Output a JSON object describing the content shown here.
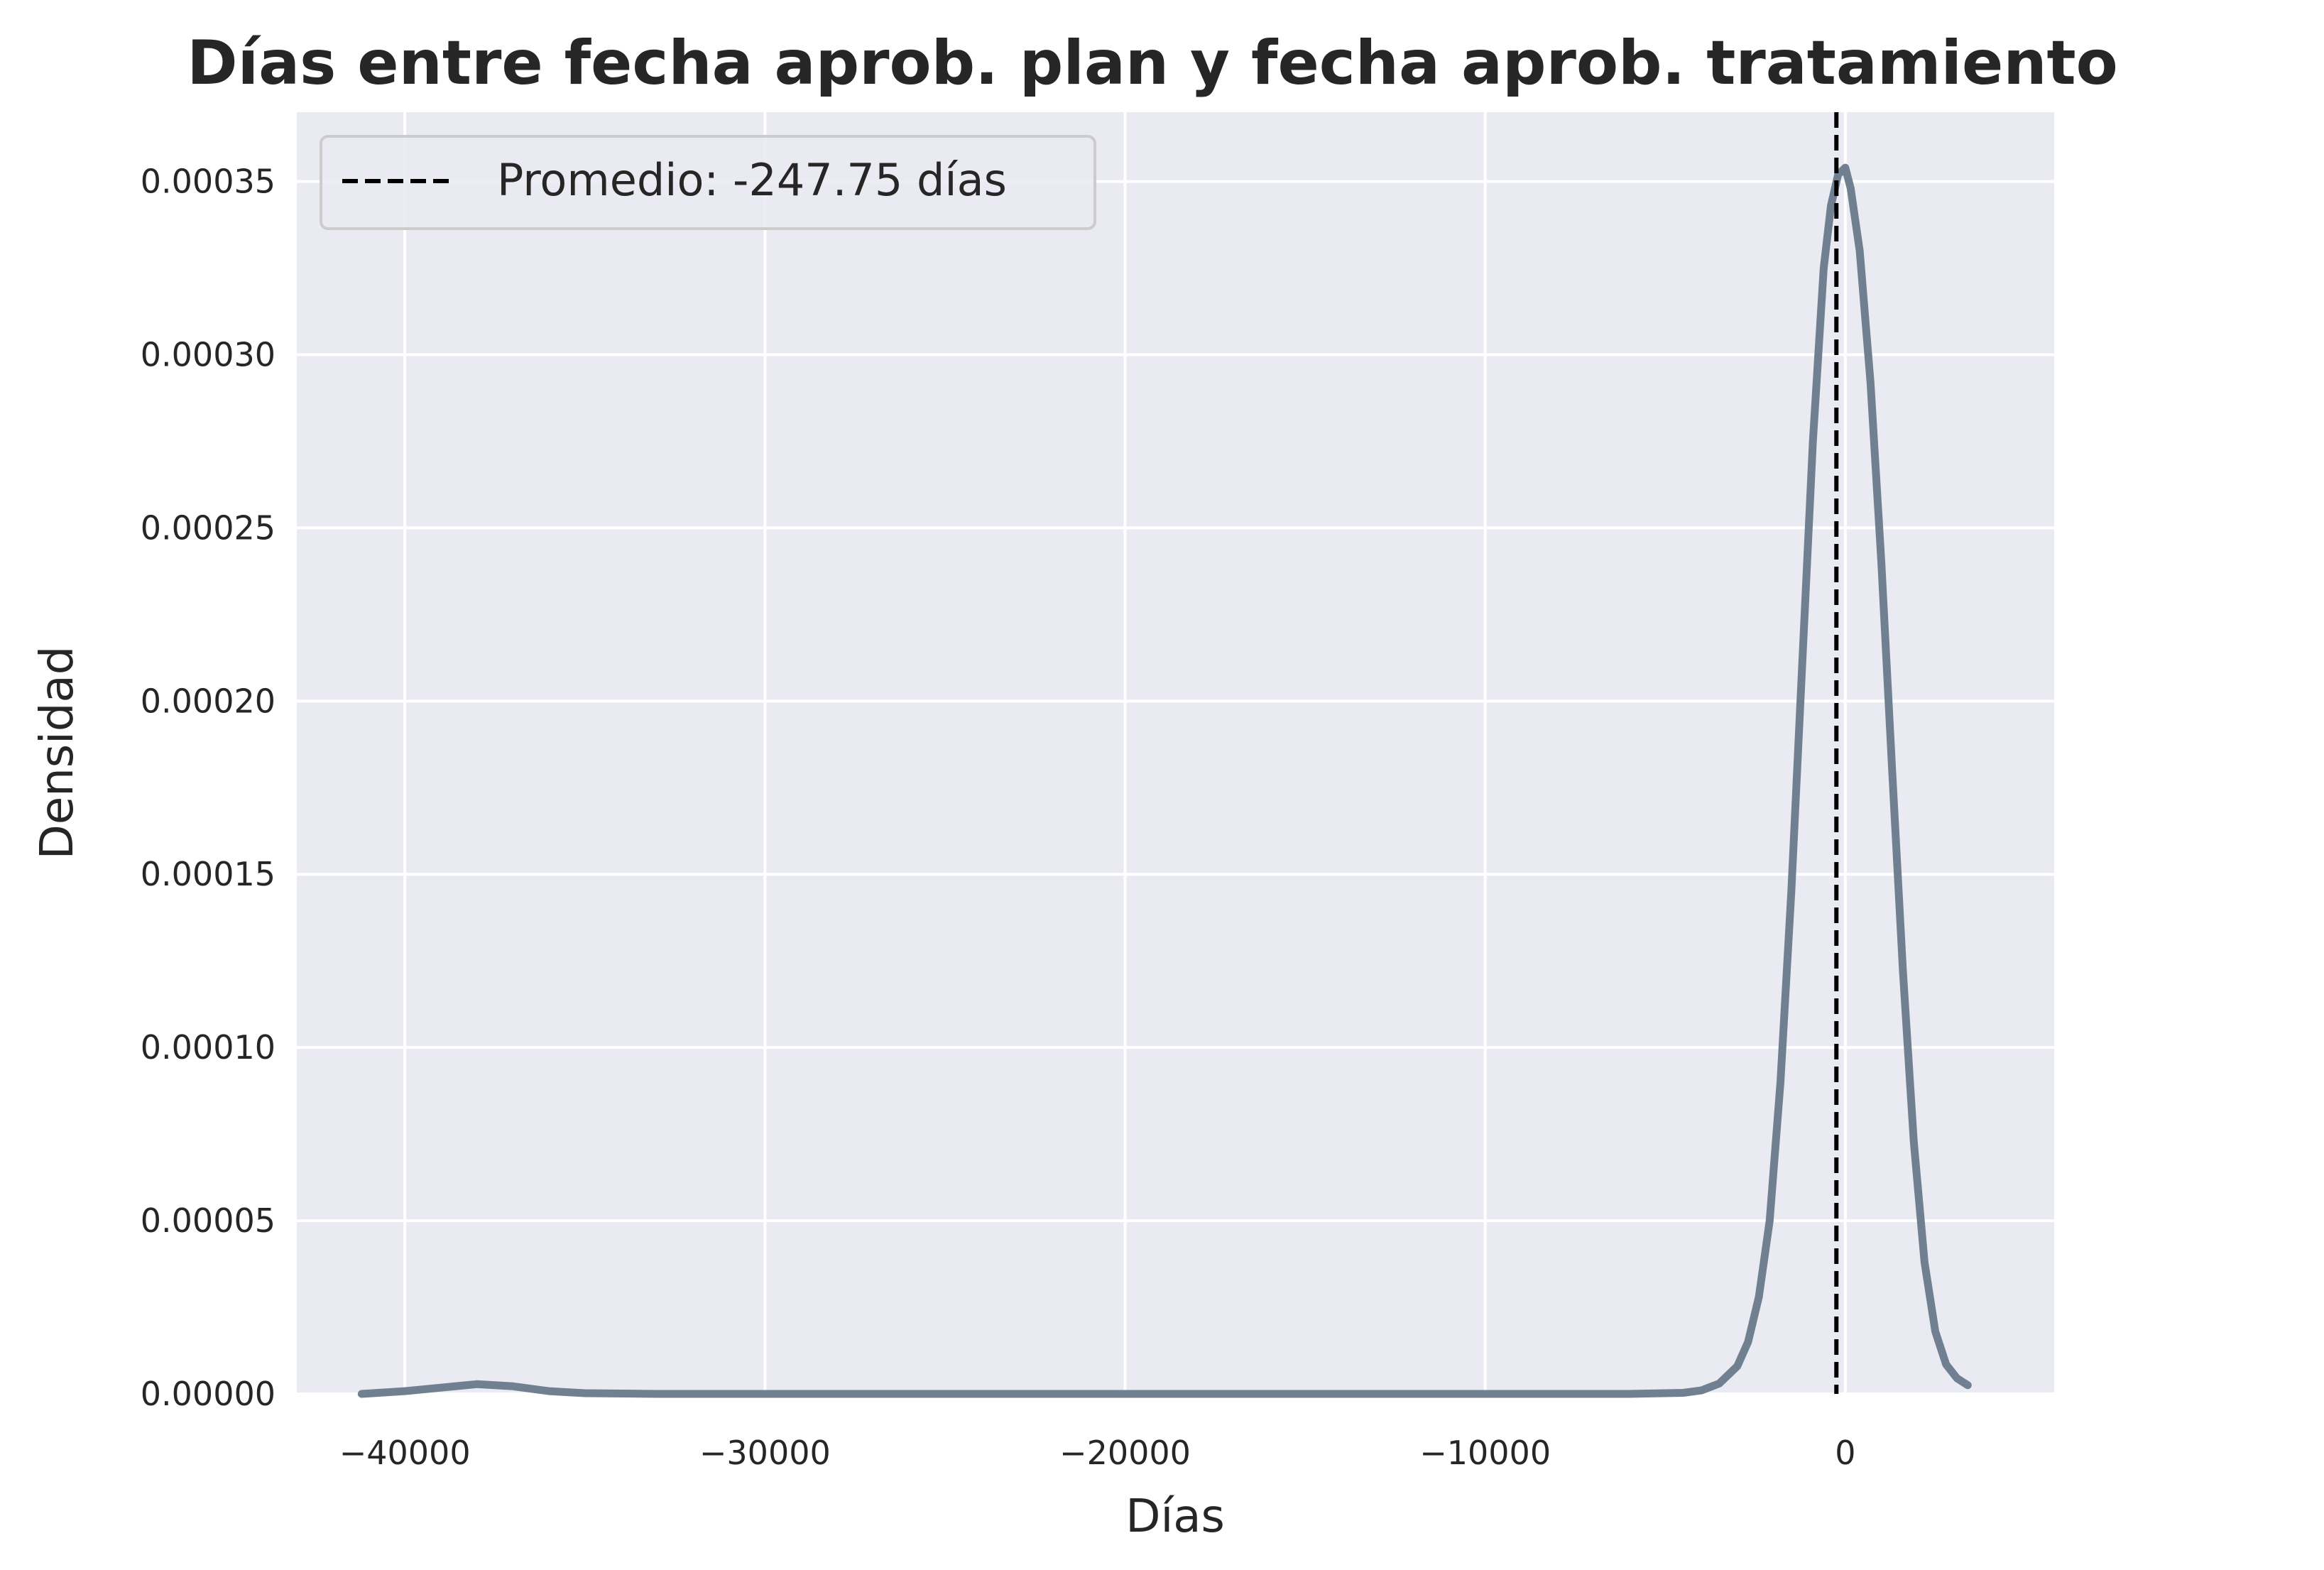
{
  "chart_data": {
    "type": "line",
    "title": "Días entre fecha aprob. plan y fecha aprob. tratamiento",
    "xlabel": "Días",
    "ylabel": "Densidad",
    "xlim": [
      -43000,
      5800
    ],
    "ylim": [
      0,
      0.00037
    ],
    "xticks": [
      {
        "value": -40000,
        "label": "−40000"
      },
      {
        "value": -30000,
        "label": "−30000"
      },
      {
        "value": -20000,
        "label": "−20000"
      },
      {
        "value": -10000,
        "label": "−10000"
      },
      {
        "value": 0,
        "label": "0"
      }
    ],
    "yticks": [
      {
        "value": 0,
        "label": "0.00000"
      },
      {
        "value": 5e-05,
        "label": "0.00005"
      },
      {
        "value": 0.0001,
        "label": "0.00010"
      },
      {
        "value": 0.00015,
        "label": "0.00015"
      },
      {
        "value": 0.0002,
        "label": "0.00020"
      },
      {
        "value": 0.00025,
        "label": "0.00025"
      },
      {
        "value": 0.0003,
        "label": "0.00030"
      },
      {
        "value": 0.00035,
        "label": "0.00035"
      }
    ],
    "grid": true,
    "legend_position": "top-left",
    "series": [
      {
        "kind": "kde",
        "color": "#708090",
        "x": [
          -41200,
          -40000,
          -39000,
          -38000,
          -37000,
          -36000,
          -35000,
          -33000,
          -25000,
          -15000,
          -6000,
          -4500,
          -4000,
          -3500,
          -3000,
          -2700,
          -2400,
          -2100,
          -1800,
          -1500,
          -1200,
          -900,
          -600,
          -400,
          -200,
          0,
          150,
          400,
          700,
          1000,
          1300,
          1600,
          1900,
          2200,
          2500,
          2800,
          3100,
          3400
        ],
        "y": [
          0.0,
          8e-07,
          1.8e-06,
          2.8e-06,
          2.2e-06,
          8e-07,
          2e-07,
          0.0,
          0.0,
          0.0,
          0.0,
          3e-07,
          1e-06,
          3e-06,
          8e-06,
          1.5e-05,
          2.8e-05,
          5e-05,
          9e-05,
          0.000145,
          0.00021,
          0.000275,
          0.000325,
          0.000343,
          0.000352,
          0.000354,
          0.000348,
          0.00033,
          0.000292,
          0.00024,
          0.00018,
          0.000122,
          7.3e-05,
          3.8e-05,
          1.8e-05,
          8.5e-06,
          4.5e-06,
          2.5e-06
        ]
      }
    ],
    "reference_lines": [
      {
        "orientation": "vertical",
        "x": -247.75,
        "style": "dashed",
        "color": "#000000",
        "label": "Promedio: -247.75 días"
      }
    ]
  },
  "colors": {
    "plot_background": "#EAEAF2",
    "grid": "#FFFFFF",
    "kde_line": "#708090",
    "mean_line": "#000000",
    "text": "#262626"
  }
}
